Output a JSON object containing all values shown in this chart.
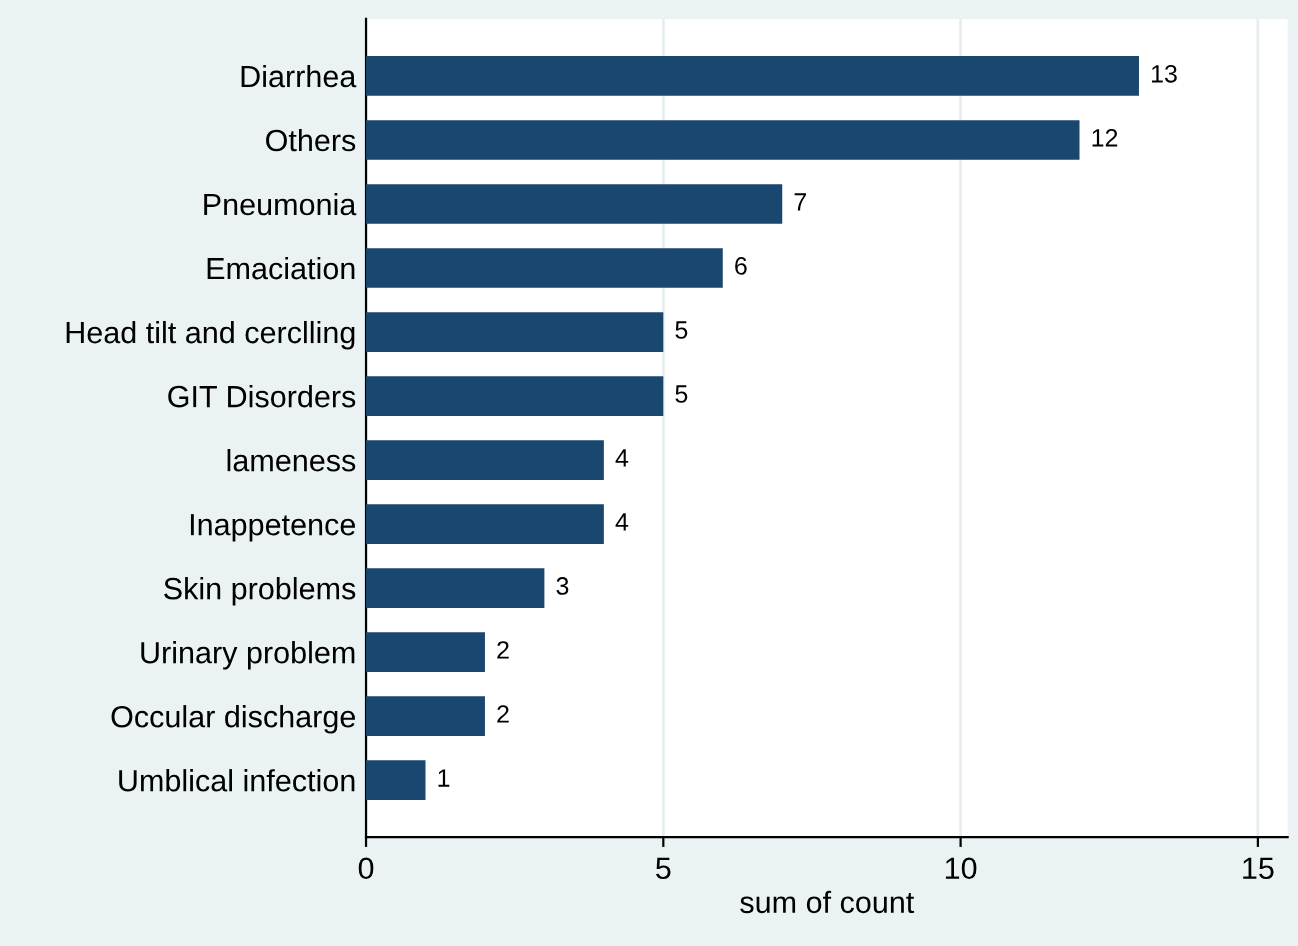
{
  "chart_data": {
    "type": "bar",
    "orientation": "horizontal",
    "xlabel": "sum of count",
    "categories": [
      "Diarrhea",
      "Others",
      "Pneumonia",
      "Emaciation",
      "Head tilt and cerclling",
      "GIT Disorders",
      "lameness",
      "Inappetence",
      "Skin problems",
      "Urinary problem",
      "Occular discharge",
      "Umblical infection"
    ],
    "values": [
      13,
      12,
      7,
      6,
      5,
      5,
      4,
      4,
      3,
      2,
      2,
      1
    ],
    "color": "#1a476f",
    "xlim": [
      0,
      15.5
    ],
    "xticks": [
      0,
      5,
      10,
      15
    ],
    "grid": "x",
    "data_labels": true
  }
}
